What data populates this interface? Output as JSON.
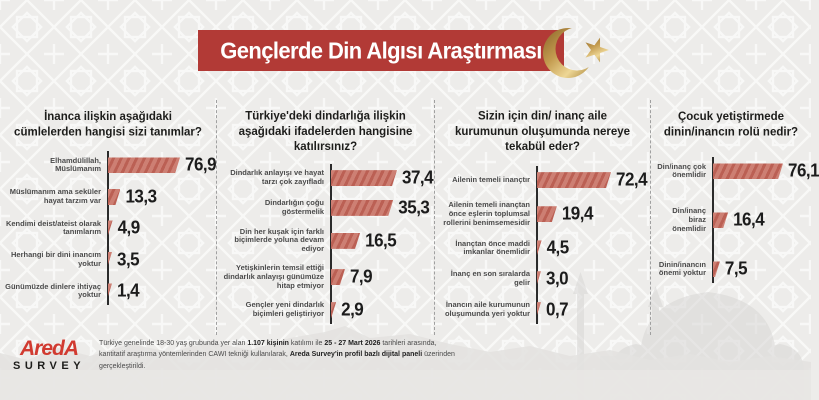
{
  "header": {
    "title": "Gençlerde Din Algısı Araştırması"
  },
  "icons": {
    "crescent_star": "crescent-star-icon"
  },
  "colors": {
    "banner_red": "#b23a36",
    "bar_base": "#cd7f73",
    "bar_stripe": "#bb6054",
    "gold": "#c49c50",
    "logo_red": "#d13a30",
    "background": "#edecea"
  },
  "chart_data": [
    {
      "type": "bar",
      "orientation": "horizontal",
      "title": "İnanca ilişkin aşağıdaki cümlelerden hangisi sizi tanımlar?",
      "categories": [
        "Elhamdülillah, Müslümanım",
        "Müslümanım ama seküler hayat tarzım var",
        "Kendimi deist/ateist olarak tanımlarım",
        "Herhangi bir dini inancım yoktur",
        "Günümüzde dinlere ihtiyaç yoktur"
      ],
      "values": [
        76.9,
        13.3,
        4.9,
        3.5,
        1.4
      ],
      "value_labels": [
        "76,9",
        "13,3",
        "4,9",
        "3,5",
        "1,4"
      ],
      "unit": "percent",
      "xlim": [
        0,
        80
      ],
      "grid": false,
      "legend": "none"
    },
    {
      "type": "bar",
      "orientation": "horizontal",
      "title": "Türkiye'deki dindarlığa ilişkin aşağıdaki ifadelerden hangisine katılırsınız?",
      "categories": [
        "Dindarlık anlayışı ve hayat tarzı çok zayıfladı",
        "Dindarlığın çoğu göstermelik",
        "Din her kuşak için farklı biçimlerde yoluna devam ediyor",
        "Yetişkinlerin temsil ettiği dindarlık anlayışı günümüze hitap etmiyor",
        "Gençler yeni dindarlık biçimleri geliştiriyor"
      ],
      "values": [
        37.4,
        35.3,
        16.5,
        7.9,
        2.9
      ],
      "value_labels": [
        "37,4",
        "35,3",
        "16,5",
        "7,9",
        "2,9"
      ],
      "unit": "percent",
      "xlim": [
        0,
        40
      ],
      "grid": false,
      "legend": "none"
    },
    {
      "type": "bar",
      "orientation": "horizontal",
      "title": "Sizin için din/ inanç aile kurumunun oluşumunda nereye tekabül eder?",
      "categories": [
        "Ailenin temeli inançtır",
        "Ailenin temeli inançtan önce eşlerin toplumsal rollerini benimsemesidir",
        "İnançtan önce maddi imkanlar önemlidir",
        "İnanç en son sıralarda gelir",
        "İnancın aile kurumunun oluşumunda yeri yoktur"
      ],
      "values": [
        72.4,
        19.4,
        4.5,
        3.0,
        0.7
      ],
      "value_labels": [
        "72,4",
        "19,4",
        "4,5",
        "3,0",
        "0,7"
      ],
      "unit": "percent",
      "xlim": [
        0,
        80
      ],
      "grid": false,
      "legend": "none"
    },
    {
      "type": "bar",
      "orientation": "horizontal",
      "title": "Çocuk yetiştirmede dinin/inancın rolü nedir?",
      "categories": [
        "Din/inanç çok önemlidir",
        "Din/inanç biraz önemlidir",
        "Dinin/inancın önemi yoktur"
      ],
      "values": [
        76.1,
        16.4,
        7.5
      ],
      "value_labels": [
        "76,1",
        "16,4",
        "7,5"
      ],
      "unit": "percent",
      "xlim": [
        0,
        80
      ],
      "grid": false,
      "legend": "none"
    }
  ],
  "footer": {
    "logo_line1": "AredA",
    "logo_line2": "SURVEY",
    "note_segments": [
      {
        "text": "Türkiye genelinde 18-30 yaş grubunda yer alan ",
        "bold": false
      },
      {
        "text": "1.107 kişinin",
        "bold": true
      },
      {
        "text": " katılımı ile ",
        "bold": false
      },
      {
        "text": "25 - 27 Mart 2026",
        "bold": true
      },
      {
        "text": " tarihleri arasında, kantitatif araştırma yöntemlerinden CAWI tekniği kullanılarak, ",
        "bold": false
      },
      {
        "text": "Areda Survey'in profil bazlı dijital paneli",
        "bold": true
      },
      {
        "text": " üzerinden gerçekleştirildi.",
        "bold": false
      }
    ]
  }
}
